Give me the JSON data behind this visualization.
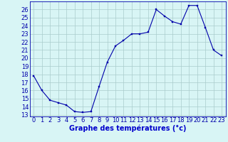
{
  "hours": [
    0,
    1,
    2,
    3,
    4,
    5,
    6,
    7,
    8,
    9,
    10,
    11,
    12,
    13,
    14,
    15,
    16,
    17,
    18,
    19,
    20,
    21,
    22,
    23
  ],
  "temps": [
    17.8,
    16.0,
    14.8,
    14.5,
    14.2,
    13.4,
    13.3,
    13.4,
    16.5,
    19.5,
    21.5,
    22.2,
    23.0,
    23.0,
    23.2,
    26.0,
    25.2,
    24.5,
    24.2,
    26.5,
    26.5,
    23.8,
    21.0,
    20.3
  ],
  "line_color": "#0000aa",
  "marker_color": "#0000aa",
  "bg_color": "#d8f5f5",
  "grid_color": "#aacccc",
  "xlabel": "Graphe des températures (°c)",
  "xlabel_color": "#0000cc",
  "xlabel_fontsize": 7,
  "tick_fontsize": 6,
  "ylim_min": 12.8,
  "ylim_max": 27.0,
  "yticks": [
    13,
    14,
    15,
    16,
    17,
    18,
    19,
    20,
    21,
    22,
    23,
    24,
    25,
    26
  ],
  "xlim_min": -0.5,
  "xlim_max": 23.5,
  "xticks": [
    0,
    1,
    2,
    3,
    4,
    5,
    6,
    7,
    8,
    9,
    10,
    11,
    12,
    13,
    14,
    15,
    16,
    17,
    18,
    19,
    20,
    21,
    22,
    23
  ]
}
